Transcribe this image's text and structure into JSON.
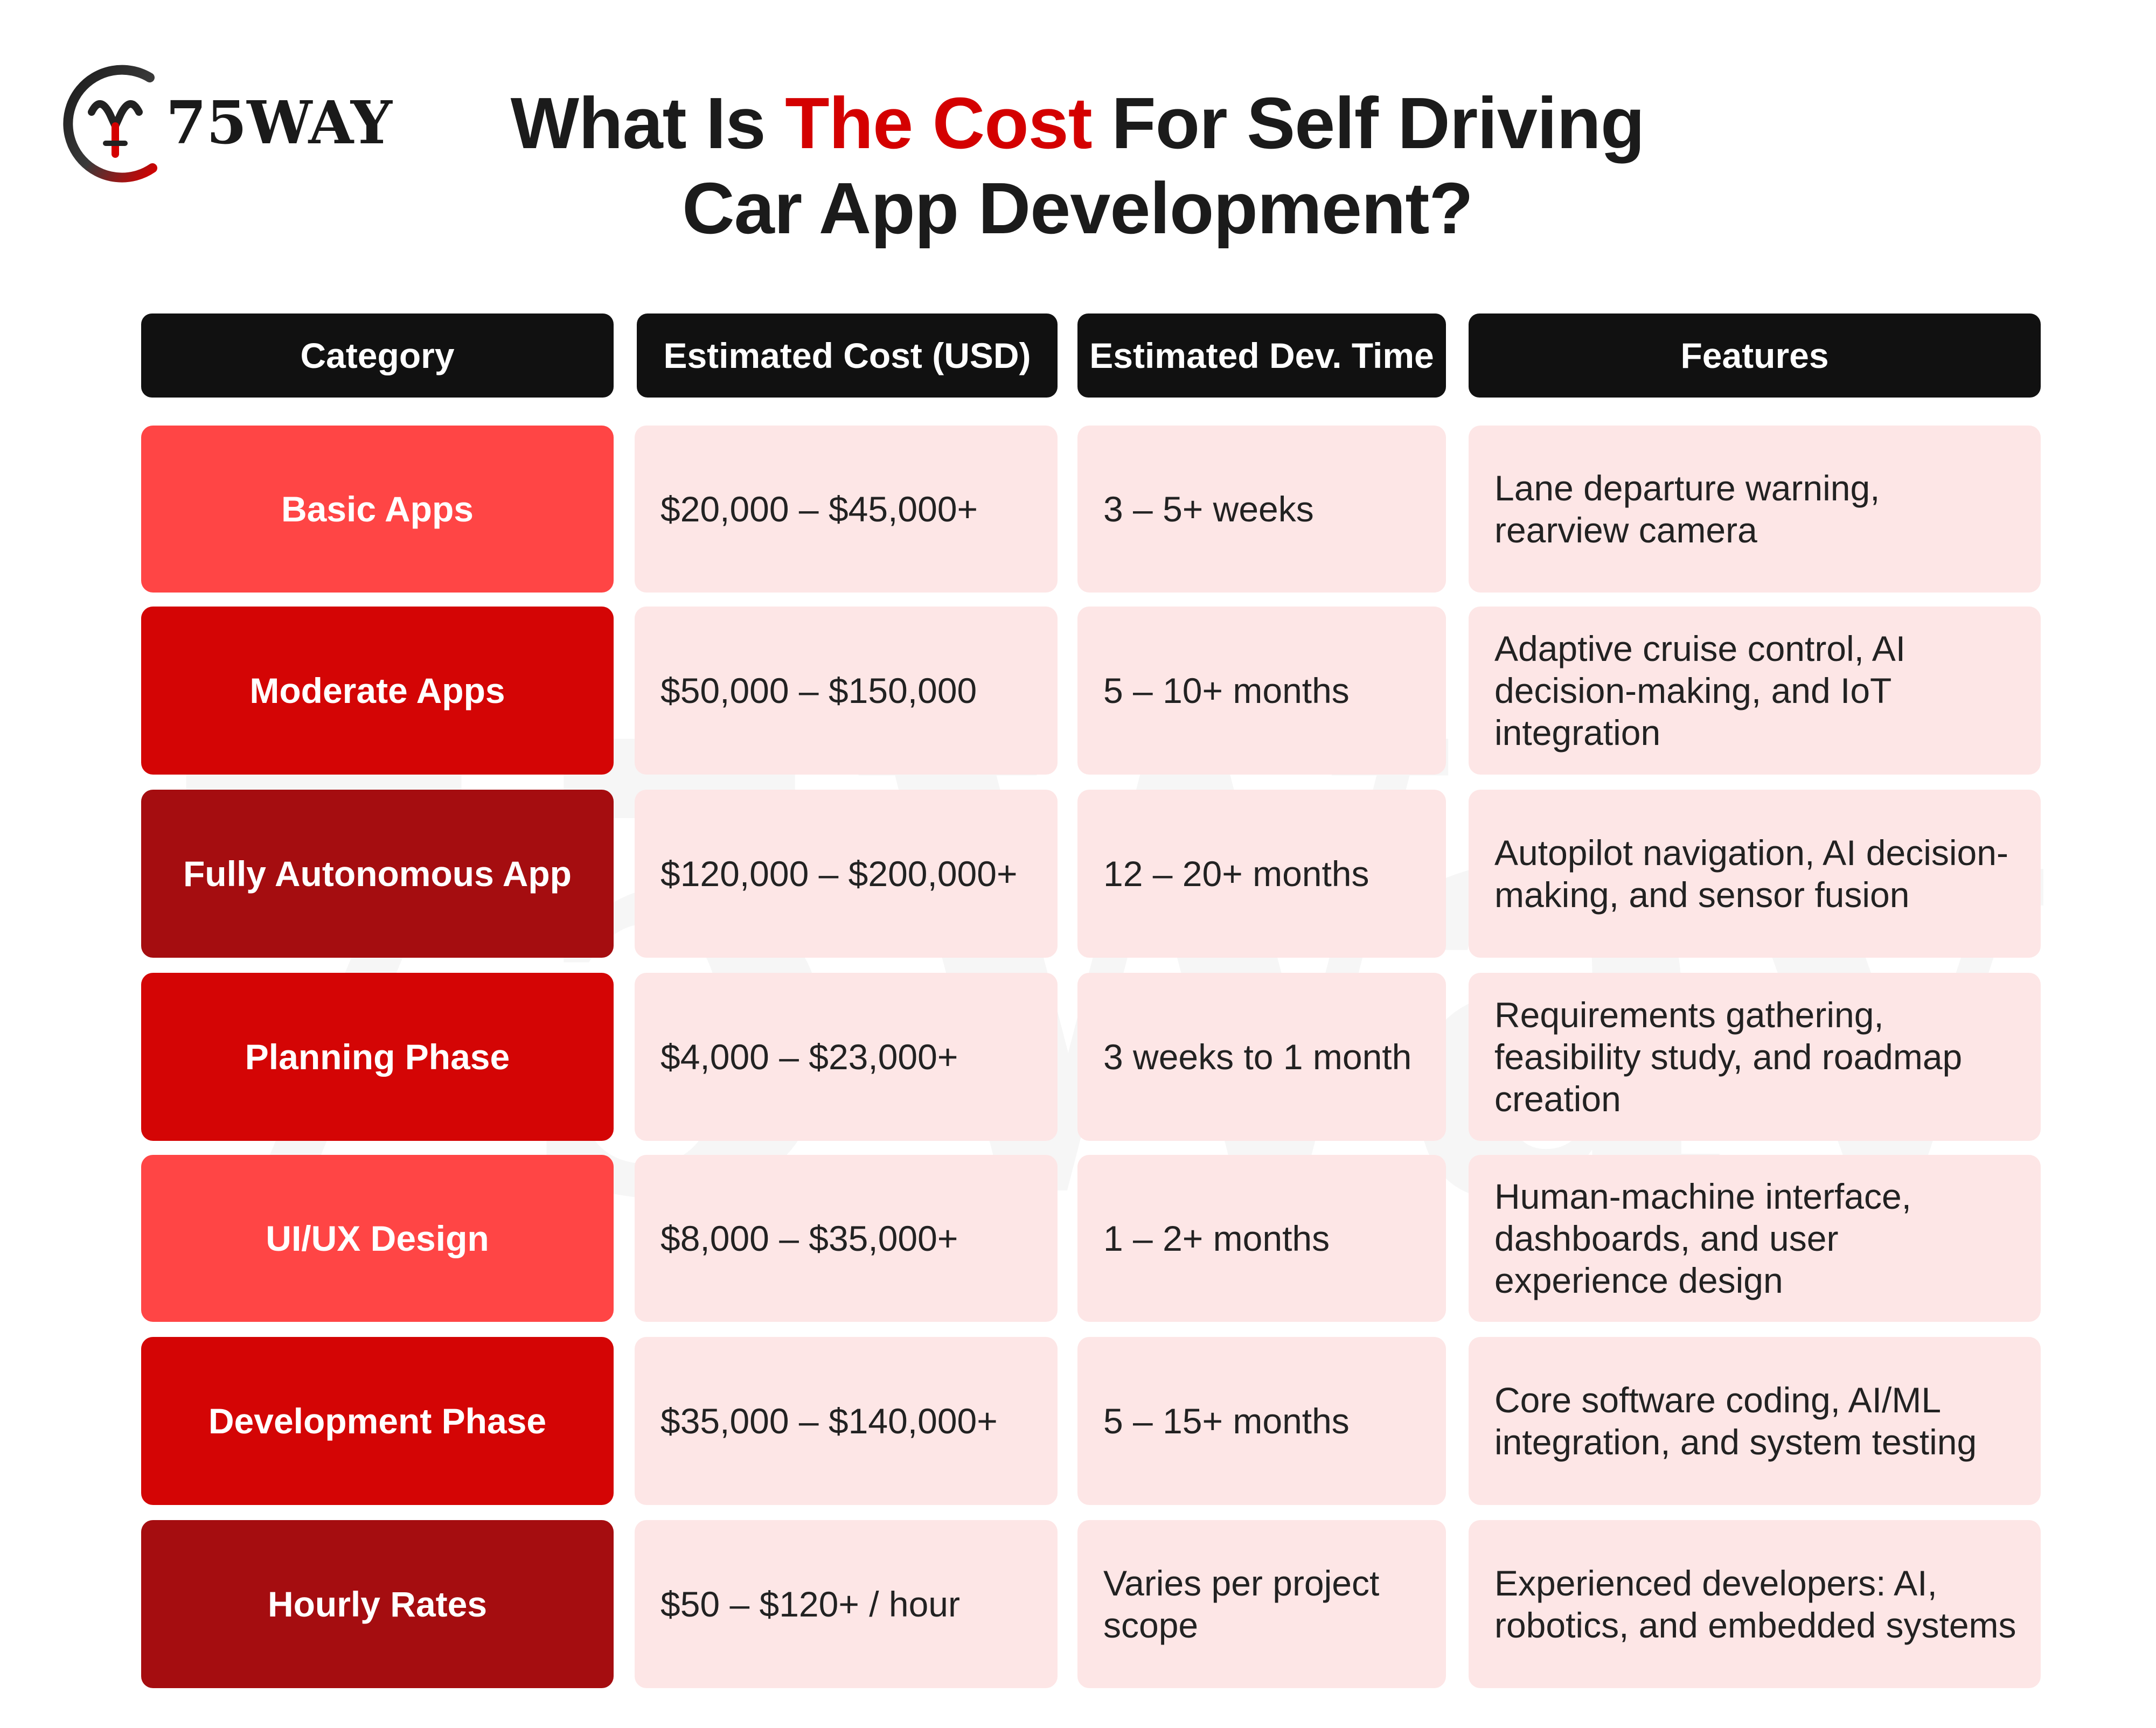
{
  "brand": {
    "logo_text": "75WAY",
    "watermark_text": "75Way"
  },
  "title": {
    "prefix": "What Is ",
    "highlight": "The Cost",
    "suffix": " For Self Driving",
    "line2": "Car App Development?"
  },
  "colors": {
    "accent": "#d40000",
    "header_bg": "#111111",
    "cell_bg": "#fde6e6",
    "category_light": "#ff4545",
    "category_mid": "#d40505",
    "category_dark": "#a50d10"
  },
  "table": {
    "headers": {
      "category": "Category",
      "cost": "Estimated Cost (USD)",
      "time": "Estimated Dev. Time",
      "features": "Features"
    },
    "rows": [
      {
        "category": "Basic Apps",
        "cost": "$20,000 – $45,000+",
        "time": "3 – 5+ weeks",
        "features": "Lane departure warning, rearview camera",
        "shade": "light"
      },
      {
        "category": "Moderate Apps",
        "cost": "$50,000 – $150,000",
        "time": "5 – 10+ months",
        "features": "Adaptive cruise control, AI decision-making, and IoT integration",
        "shade": "mid"
      },
      {
        "category": "Fully Autonomous App",
        "cost": "$120,000 – $200,000+",
        "time": "12 – 20+ months",
        "features": "Autopilot navigation, AI decision-making, and sensor fusion",
        "shade": "dark"
      },
      {
        "category": "Planning Phase",
        "cost": "$4,000 – $23,000+",
        "time": "3 weeks to 1 month",
        "features": "Requirements gathering, feasibility study, and roadmap creation",
        "shade": "mid"
      },
      {
        "category": "UI/UX Design",
        "cost": "$8,000 – $35,000+",
        "time": "1 – 2+ months",
        "features": "Human-machine interface, dashboards, and user experience design",
        "shade": "light"
      },
      {
        "category": "Development Phase",
        "cost": "$35,000 – $140,000+",
        "time": "5 – 15+ months",
        "features": "Core software coding, AI/ML integration, and system testing",
        "shade": "mid"
      },
      {
        "category": "Hourly Rates",
        "cost": "$50 – $120+ / hour",
        "time": "Varies per project scope",
        "features": "Experienced developers: AI, robotics, and embedded systems",
        "shade": "dark"
      }
    ]
  }
}
